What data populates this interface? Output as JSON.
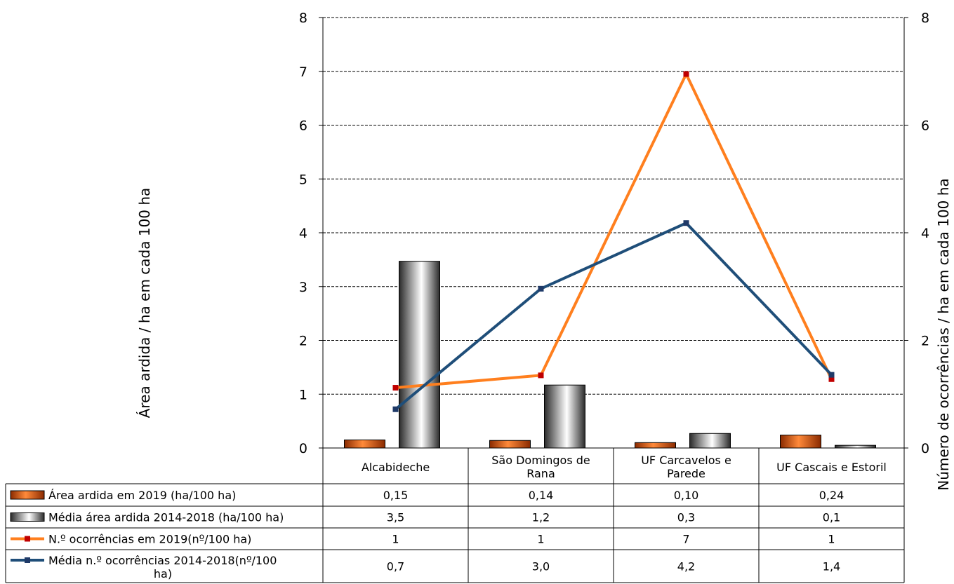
{
  "chart_data": {
    "type": "bar",
    "categories": [
      "Alcabideche",
      "São Domingos de Rana",
      "UF Carcavelos e Parede",
      "UF Cascais e Estoril"
    ],
    "category_lines": [
      [
        "Alcabideche"
      ],
      [
        "São Domingos de",
        "Rana"
      ],
      [
        "UF Carcavelos e",
        "Parede"
      ],
      [
        "UF Cascais e Estoril"
      ]
    ],
    "ylabel": "Área ardida / ha em cada 100 ha",
    "y2label": "Número de ocorrências / ha em cada 100 ha",
    "ylim": [
      0,
      8
    ],
    "y2lim": [
      0,
      8
    ],
    "yticks": [
      "0",
      "1",
      "2",
      "3",
      "4",
      "5",
      "6",
      "7",
      "8"
    ],
    "y2ticks": [
      "0",
      "2",
      "4",
      "6",
      "8"
    ],
    "grid": true,
    "legend": "data-table-below",
    "series": [
      {
        "name": "Área ardida em 2019 (ha/100 ha)",
        "kind": "bar",
        "axis": "left",
        "color": "#e8620f",
        "values": [
          0.15,
          0.14,
          0.1,
          0.24
        ],
        "labels": [
          "0,15",
          "0,14",
          "0,10",
          "0,24"
        ],
        "label_lines": [
          "Área ardida em 2019 (ha/100 ha)"
        ]
      },
      {
        "name": "Média área ardida 2014-2018 (ha/100 ha)",
        "kind": "bar",
        "axis": "left",
        "color": "#bfbfbf",
        "values": [
          3.47,
          1.17,
          0.27,
          0.05
        ],
        "labels": [
          "3,5",
          "1,2",
          "0,3",
          "0,1"
        ],
        "label_lines": [
          "Média área ardida 2014-2018 (ha/100 ha)"
        ]
      },
      {
        "name": "N.º ocorrências em 2019(nº/100 ha)",
        "kind": "line",
        "axis": "right",
        "color": "#ff7f1e",
        "marker_color": "#c00000",
        "values": [
          1.12,
          1.35,
          6.95,
          1.28
        ],
        "labels": [
          "1",
          "1",
          "7",
          "1"
        ],
        "label_lines": [
          "N.º ocorrências em 2019(nº/100 ha)"
        ]
      },
      {
        "name": "Média n.º ocorrências 2014-2018(nº/100 ha)",
        "kind": "line",
        "axis": "right",
        "color": "#1f4e79",
        "marker_color": "#1f3a68",
        "values": [
          0.72,
          2.96,
          4.18,
          1.36
        ],
        "labels": [
          "0,7",
          "3,0",
          "4,2",
          "1,4"
        ],
        "label_lines": [
          "Média n.º ocorrências 2014-2018(nº/100",
          "ha)"
        ]
      }
    ]
  }
}
